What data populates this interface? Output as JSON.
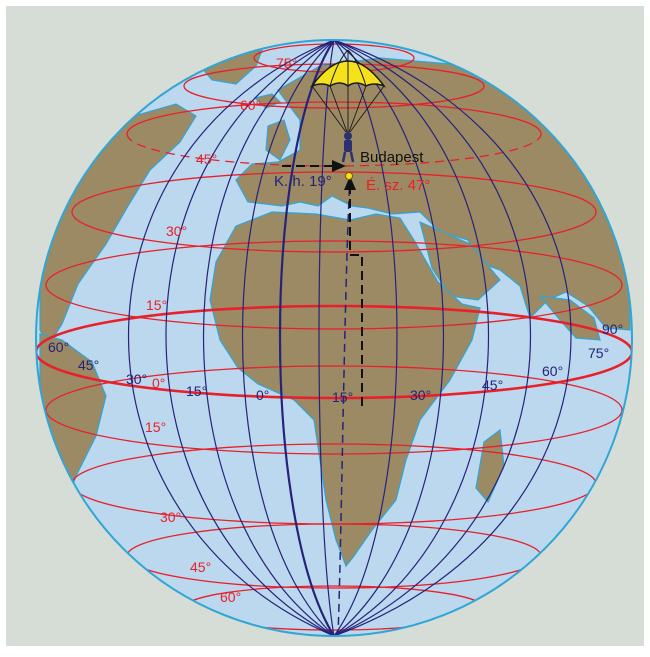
{
  "colors": {
    "background": "#d5ddd6",
    "ocean": "#bcd8ee",
    "land": "#9b8a64",
    "coast": "#2fa6d6",
    "meridian": "#25237a",
    "parallel": "#e8202a",
    "parachute": "#f6e21c"
  },
  "marker": {
    "city": "Budapest",
    "longitude_label": "K. h. 19°",
    "latitude_label": "É. sz. 47°",
    "icon": "parachute-icon"
  },
  "latitude_labels": {
    "north_75": "75°",
    "north_60": "60°",
    "north_45": "45°",
    "north_30": "30°",
    "north_15": "15°",
    "equator": "0°",
    "south_15": "15°",
    "south_30": "30°",
    "south_45": "45°",
    "south_60": "60°"
  },
  "longitude_labels": {
    "w60": "60°",
    "w45": "45°",
    "w30": "30°",
    "w15": "15°",
    "prime": "0°",
    "e15": "15°",
    "e30": "30°",
    "e45": "45°",
    "e60": "60°",
    "e75": "75°",
    "e90": "90°"
  }
}
